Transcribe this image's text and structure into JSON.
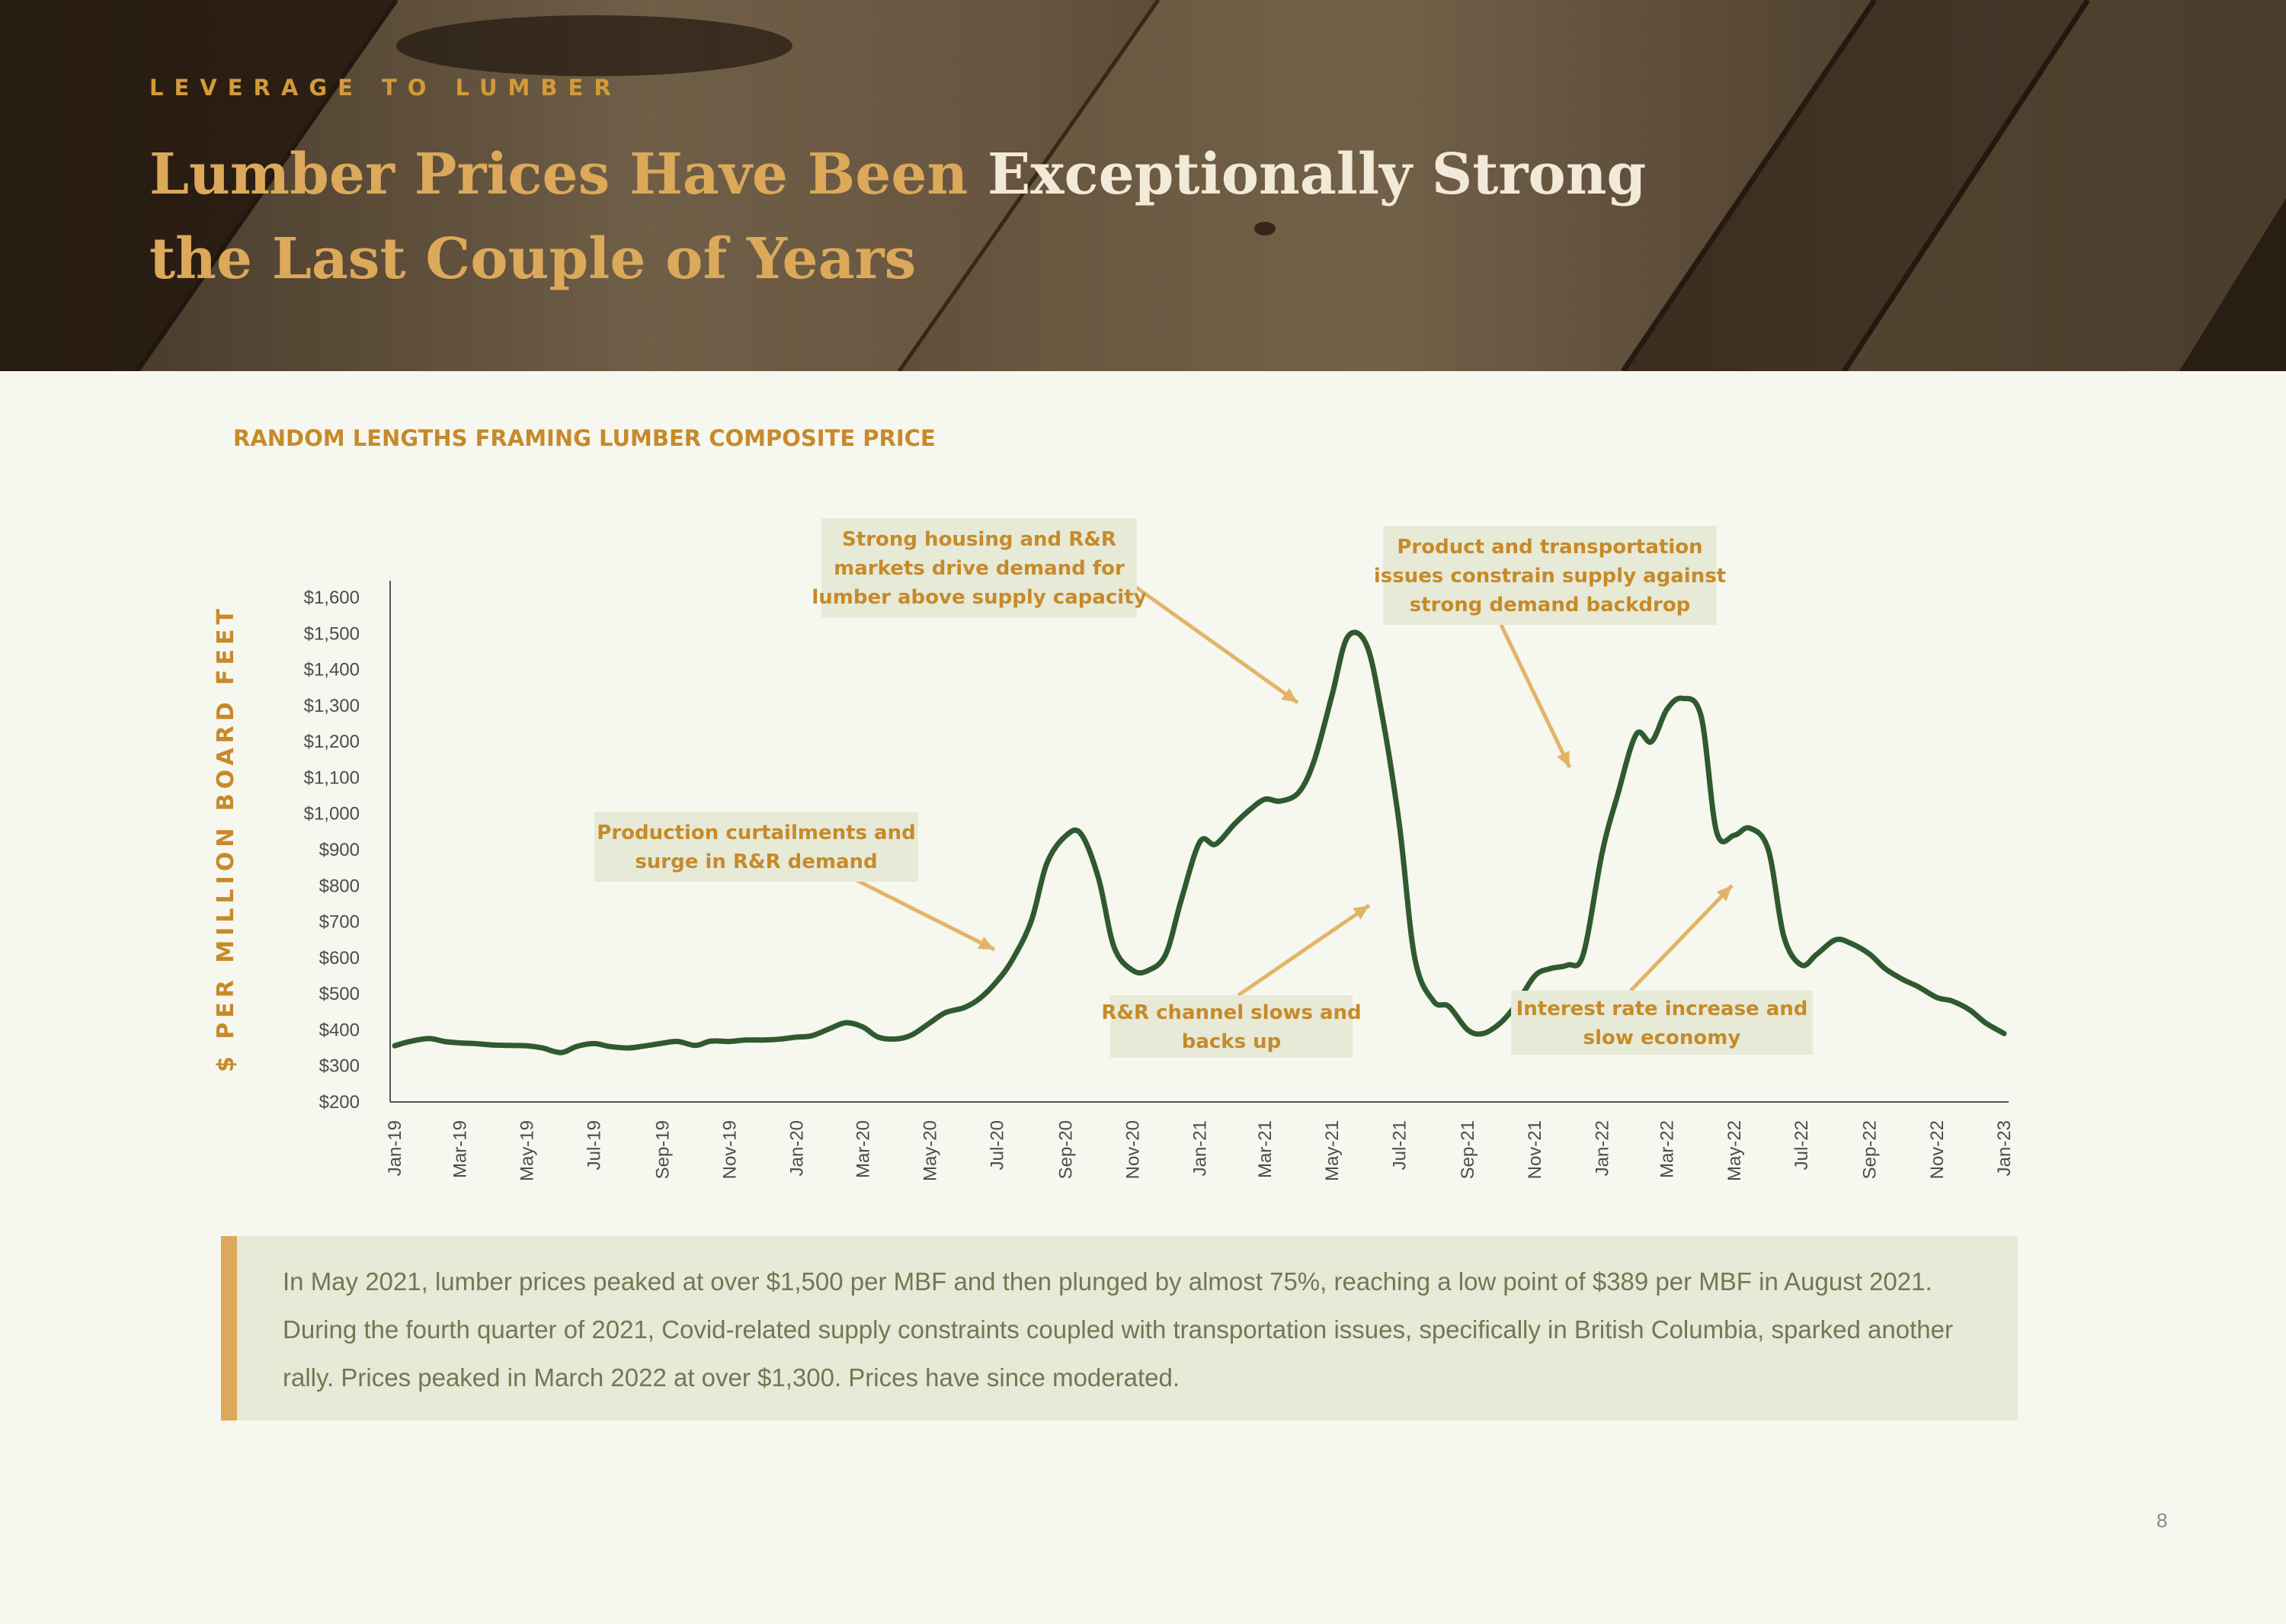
{
  "header": {
    "eyebrow": "LEVERAGE TO LUMBER",
    "title_part1": "Lumber Prices Have Been ",
    "title_part2": "Exceptionally Strong",
    "title_line2": "the Last Couple of Years"
  },
  "colors": {
    "accent": "#dca95a",
    "accent_dark": "#c78a2a",
    "line": "#2f5a2f",
    "callout_bg": "#e6ead6",
    "page_bg": "#f6f7ef"
  },
  "chart_data": {
    "type": "line",
    "title": "RANDOM LENGTHS FRAMING LUMBER COMPOSITE PRICE",
    "ylabel": "$ PER MILLION BOARD FEET",
    "xlabel": "",
    "ylim": [
      200,
      1600
    ],
    "yticks": [
      1600,
      1500,
      1400,
      1300,
      1200,
      1100,
      1000,
      900,
      800,
      700,
      600,
      500,
      400,
      300,
      200
    ],
    "ytick_labels": [
      "$1,600",
      "$1,500",
      "$1,400",
      "$1,300",
      "$1,200",
      "$1,100",
      "$1,000",
      "$900",
      "$800",
      "$700",
      "$600",
      "$500",
      "$400",
      "$300",
      "$200"
    ],
    "xtick_labels": [
      "Jan-19",
      "Mar-19",
      "May-19",
      "Jul-19",
      "Sep-19",
      "Nov-19",
      "Jan-20",
      "Mar-20",
      "May-20",
      "Jul-20",
      "Sep-20",
      "Nov-20",
      "Jan-21",
      "Mar-21",
      "May-21",
      "Jul-21",
      "Sep-21",
      "Nov-21",
      "Jan-22",
      "Mar-22",
      "May-22",
      "Jul-22",
      "Sep-22",
      "Nov-22",
      "Jan-23"
    ],
    "grid": false,
    "series": [
      {
        "x": [
          "2019-01-01",
          "2019-01-15",
          "2019-02-01",
          "2019-02-15",
          "2019-03-01",
          "2019-03-15",
          "2019-04-01",
          "2019-04-15",
          "2019-05-01",
          "2019-05-15",
          "2019-06-01",
          "2019-06-15",
          "2019-07-01",
          "2019-07-15",
          "2019-08-01",
          "2019-08-15",
          "2019-09-01",
          "2019-09-15",
          "2019-10-01",
          "2019-10-15",
          "2019-11-01",
          "2019-11-15",
          "2019-12-01",
          "2019-12-15",
          "2020-01-01",
          "2020-01-15",
          "2020-02-01",
          "2020-02-15",
          "2020-03-01",
          "2020-03-15",
          "2020-04-01",
          "2020-04-15",
          "2020-05-01",
          "2020-05-15",
          "2020-06-01",
          "2020-06-15",
          "2020-07-01",
          "2020-07-15",
          "2020-08-01",
          "2020-08-15",
          "2020-09-01",
          "2020-09-15",
          "2020-10-01",
          "2020-10-15",
          "2020-11-01",
          "2020-11-15",
          "2020-12-01",
          "2020-12-15",
          "2021-01-01",
          "2021-01-15",
          "2021-02-01",
          "2021-02-15",
          "2021-03-01",
          "2021-03-15",
          "2021-04-01",
          "2021-04-15",
          "2021-05-01",
          "2021-05-15",
          "2021-06-01",
          "2021-06-15",
          "2021-07-01",
          "2021-07-15",
          "2021-08-01",
          "2021-08-15",
          "2021-09-01",
          "2021-09-15",
          "2021-10-01",
          "2021-10-15",
          "2021-11-01",
          "2021-11-15",
          "2021-12-01",
          "2021-12-15",
          "2022-01-01",
          "2022-01-15",
          "2022-02-01",
          "2022-02-15",
          "2022-03-01",
          "2022-03-15",
          "2022-04-01",
          "2022-04-15",
          "2022-05-01",
          "2022-05-15",
          "2022-06-01",
          "2022-06-15",
          "2022-07-01",
          "2022-07-15",
          "2022-08-01",
          "2022-08-15",
          "2022-09-01",
          "2022-09-15",
          "2022-10-01",
          "2022-10-15",
          "2022-11-01",
          "2022-11-15",
          "2022-12-01",
          "2022-12-15",
          "2023-01-01"
        ],
        "values": [
          356,
          368,
          376,
          368,
          364,
          362,
          358,
          357,
          356,
          350,
          337,
          354,
          362,
          354,
          350,
          355,
          363,
          368,
          357,
          369,
          368,
          372,
          372,
          374,
          380,
          384,
          405,
          420,
          408,
          380,
          375,
          387,
          420,
          448,
          462,
          487,
          536,
          596,
          703,
          862,
          938,
          944,
          820,
          630,
          565,
          565,
          610,
          760,
          922,
          915,
          970,
          1010,
          1040,
          1035,
          1060,
          1150,
          1330,
          1490,
          1470,
          1280,
          970,
          600,
          480,
          465,
          400,
          390,
          420,
          470,
          550,
          570,
          580,
          610,
          890,
          1050,
          1220,
          1200,
          1290,
          1320,
          1270,
          950,
          940,
          960,
          900,
          660,
          580,
          610,
          650,
          640,
          610,
          570,
          540,
          520,
          490,
          480,
          455,
          420,
          390
        ]
      }
    ],
    "annotations": [
      {
        "lines": [
          "Production curtailments and",
          "surge in R&R demand"
        ],
        "target": "Jul-20"
      },
      {
        "lines": [
          "Strong housing and R&R",
          "markets drive demand for",
          "lumber above supply capacity"
        ],
        "target": "May-21"
      },
      {
        "lines": [
          "R&R channel slows and",
          "backs up"
        ],
        "target": "Jul-21"
      },
      {
        "lines": [
          "Product and transportation",
          "issues constrain supply against",
          "strong demand backdrop"
        ],
        "target": "Jan-22"
      },
      {
        "lines": [
          "Interest rate increase and",
          "slow economy"
        ],
        "target": "May-22"
      }
    ]
  },
  "note": {
    "text": "In May 2021, lumber prices peaked at over $1,500 per MBF and then plunged by almost 75%, reaching a low point of $389 per MBF in August 2021. During the fourth quarter of 2021, Covid-related supply constraints coupled with transportation issues, specifically in British Columbia, sparked another rally. Prices peaked in March 2022 at over $1,300. Prices have since moderated."
  },
  "page_number": "8"
}
